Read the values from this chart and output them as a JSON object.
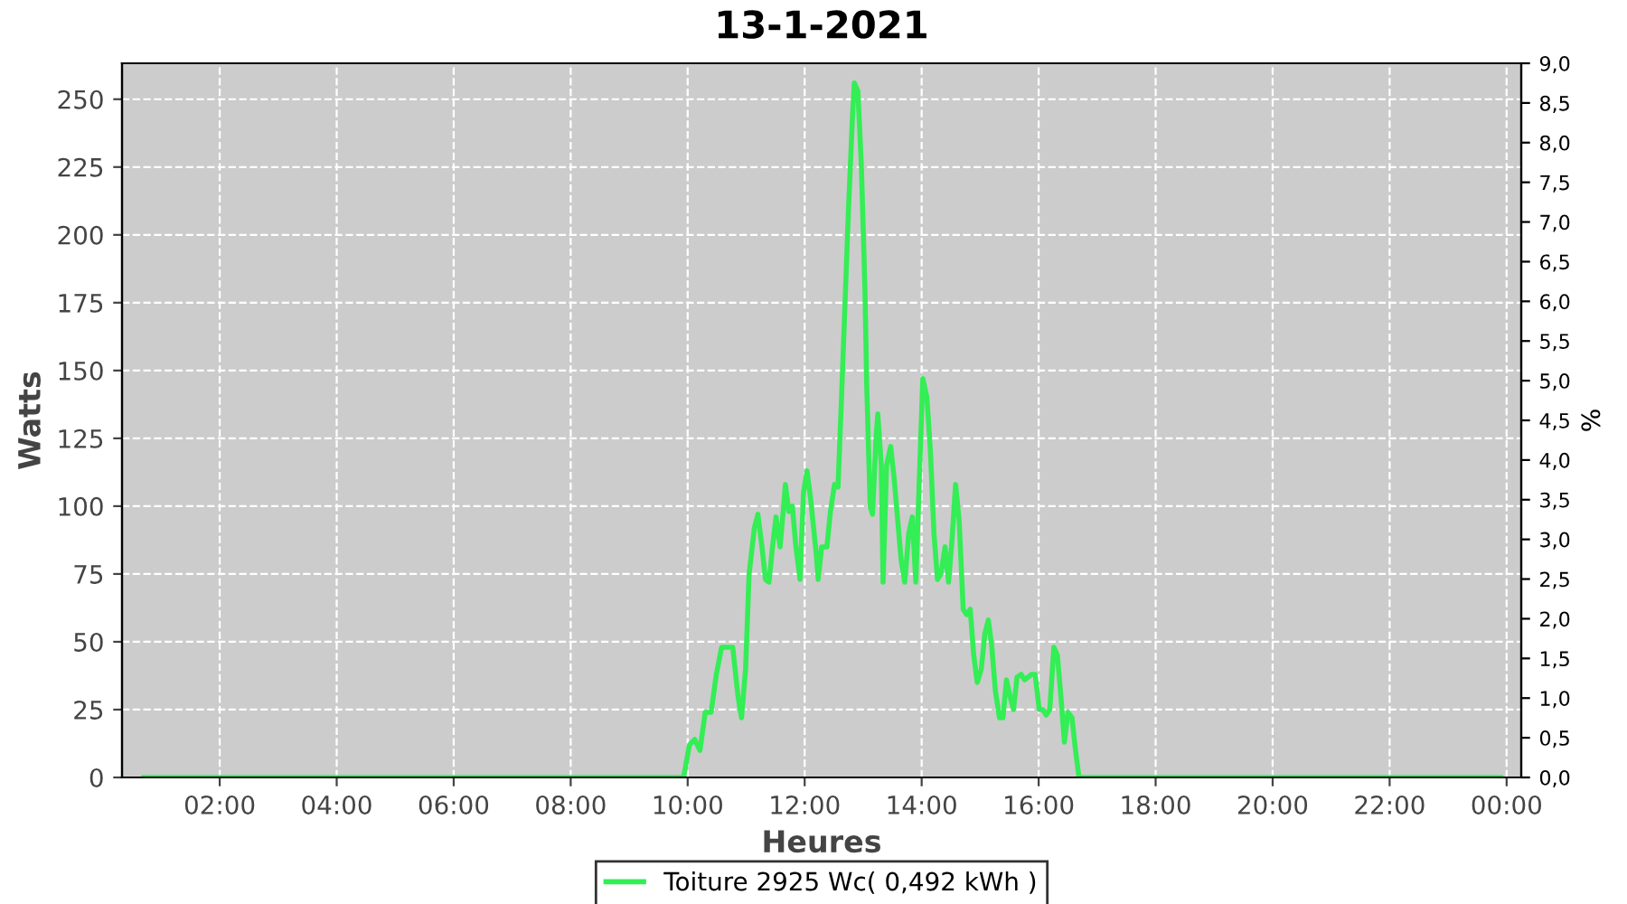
{
  "chart_data": {
    "type": "line",
    "title": "13-1-2021",
    "xlabel": "Heures",
    "ylabel": "Watts",
    "y2label": "%",
    "series": [
      {
        "name": "Toiture 2925 Wc( 0,492 kWh )",
        "color": "#33ee55",
        "x": [
          0.7,
          9.93,
          10.03,
          10.12,
          10.21,
          10.3,
          10.4,
          10.49,
          10.58,
          10.68,
          10.77,
          10.86,
          10.92,
          10.99,
          11.05,
          11.14,
          11.2,
          11.27,
          11.33,
          11.39,
          11.45,
          11.51,
          11.58,
          11.64,
          11.67,
          11.73,
          11.79,
          11.85,
          11.92,
          11.98,
          12.04,
          12.1,
          12.2,
          12.23,
          12.29,
          12.38,
          12.44,
          12.51,
          12.57,
          12.63,
          12.69,
          12.75,
          12.82,
          12.85,
          12.91,
          12.97,
          13.03,
          13.06,
          13.12,
          13.16,
          13.22,
          13.25,
          13.31,
          13.34,
          13.4,
          13.47,
          13.53,
          13.59,
          13.65,
          13.71,
          13.78,
          13.84,
          13.9,
          13.96,
          14.02,
          14.09,
          14.15,
          14.21,
          14.27,
          14.33,
          14.4,
          14.46,
          14.52,
          14.58,
          14.64,
          14.71,
          14.77,
          14.83,
          14.89,
          14.95,
          15.02,
          15.08,
          15.14,
          15.2,
          15.26,
          15.33,
          15.39,
          15.45,
          15.51,
          15.57,
          15.63,
          15.7,
          15.76,
          15.82,
          15.88,
          15.94,
          16.01,
          16.07,
          16.13,
          16.19,
          16.26,
          16.32,
          16.38,
          16.44,
          16.5,
          16.57,
          16.63,
          16.69,
          23.9
        ],
        "values": [
          0,
          0,
          12,
          14,
          10,
          24,
          24,
          38,
          48,
          48,
          48,
          30,
          22,
          40,
          75,
          92,
          97,
          85,
          73,
          72,
          85,
          96,
          85,
          100,
          108,
          98,
          100,
          85,
          73,
          105,
          113,
          103,
          82,
          73,
          85,
          85,
          98,
          108,
          107,
          140,
          175,
          210,
          245,
          256,
          253,
          225,
          180,
          145,
          100,
          97,
          125,
          134,
          115,
          72,
          115,
          122,
          110,
          95,
          80,
          72,
          90,
          96,
          72,
          110,
          147,
          140,
          120,
          90,
          73,
          75,
          85,
          72,
          88,
          108,
          95,
          62,
          60,
          62,
          45,
          35,
          40,
          53,
          58,
          48,
          32,
          22,
          22,
          36,
          30,
          25,
          37,
          38,
          36,
          37,
          38,
          38,
          25,
          25,
          23,
          25,
          48,
          45,
          30,
          13,
          24,
          22,
          10,
          0,
          0
        ]
      }
    ],
    "xlim": [
      0.33,
      24.25
    ],
    "xticks": [
      {
        "value": 2,
        "label": "02:00"
      },
      {
        "value": 4,
        "label": "04:00"
      },
      {
        "value": 6,
        "label": "06:00"
      },
      {
        "value": 8,
        "label": "08:00"
      },
      {
        "value": 10,
        "label": "10:00"
      },
      {
        "value": 12,
        "label": "12:00"
      },
      {
        "value": 14,
        "label": "14:00"
      },
      {
        "value": 16,
        "label": "16:00"
      },
      {
        "value": 18,
        "label": "18:00"
      },
      {
        "value": 20,
        "label": "20:00"
      },
      {
        "value": 22,
        "label": "22:00"
      },
      {
        "value": 24,
        "label": "00:00"
      }
    ],
    "ylim": [
      0,
      263.25
    ],
    "yticks": [
      0,
      25,
      50,
      75,
      100,
      125,
      150,
      175,
      200,
      225,
      250
    ],
    "y2lim": [
      0,
      9
    ],
    "y2ticks": [
      {
        "value": 0,
        "label": "0,0"
      },
      {
        "value": 0.5,
        "label": "0,5"
      },
      {
        "value": 1,
        "label": "1,0"
      },
      {
        "value": 1.5,
        "label": "1,5"
      },
      {
        "value": 2,
        "label": "2,0"
      },
      {
        "value": 2.5,
        "label": "2,5"
      },
      {
        "value": 3,
        "label": "3,0"
      },
      {
        "value": 3.5,
        "label": "3,5"
      },
      {
        "value": 4,
        "label": "4,0"
      },
      {
        "value": 4.5,
        "label": "4,5"
      },
      {
        "value": 5,
        "label": "5,0"
      },
      {
        "value": 5.5,
        "label": "5,5"
      },
      {
        "value": 6,
        "label": "6,0"
      },
      {
        "value": 6.5,
        "label": "6,5"
      },
      {
        "value": 7,
        "label": "7,0"
      },
      {
        "value": 7.5,
        "label": "7,5"
      },
      {
        "value": 8,
        "label": "8,0"
      },
      {
        "value": 8.5,
        "label": "8,5"
      },
      {
        "value": 9,
        "label": "9,0"
      }
    ],
    "grid": true,
    "legend": "bottom",
    "marker": "none",
    "line_style": "solid"
  }
}
